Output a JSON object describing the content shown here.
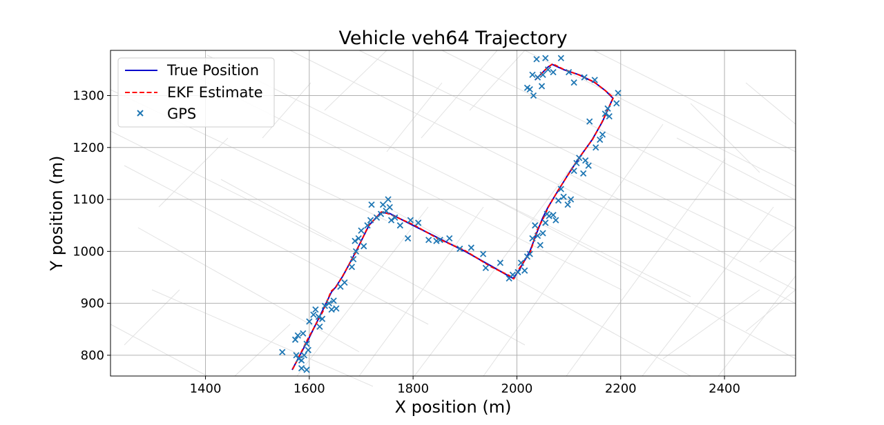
{
  "chart_data": {
    "type": "line",
    "title": "Vehicle veh64 Trajectory",
    "xlabel": "X position (m)",
    "ylabel": "Y position (m)",
    "xlim": [
      1217,
      2537
    ],
    "ylim": [
      760,
      1387
    ],
    "xticks": [
      1400,
      1600,
      1800,
      2000,
      2200,
      2400
    ],
    "yticks": [
      800,
      900,
      1000,
      1100,
      1200,
      1300
    ],
    "grid": true,
    "legend": "top-left",
    "series": [
      {
        "name": "True Position",
        "style": "solid",
        "color": "#0000cc",
        "x": [
          1567,
          1598,
          1625,
          1643,
          1650,
          1665,
          1690,
          1715,
          1738,
          1755,
          1800,
          1850,
          1900,
          1950,
          1985,
          1993,
          2005,
          2025,
          2040,
          2050,
          2060,
          2080,
          2100,
          2120,
          2145,
          2165,
          2185,
          2170,
          2150,
          2120,
          2090,
          2068,
          2060,
          2045,
          2035
        ],
        "y": [
          772,
          830,
          885,
          922,
          930,
          953,
          1000,
          1050,
          1075,
          1073,
          1050,
          1025,
          1000,
          972,
          952,
          948,
          965,
          1000,
          1040,
          1065,
          1085,
          1118,
          1150,
          1180,
          1215,
          1250,
          1295,
          1310,
          1325,
          1340,
          1350,
          1360,
          1355,
          1340,
          1330
        ]
      },
      {
        "name": "EKF Estimate",
        "style": "dashed",
        "color": "#ff0000",
        "x": [
          1568,
          1597,
          1626,
          1642,
          1651,
          1664,
          1691,
          1714,
          1739,
          1754,
          1801,
          1849,
          1901,
          1949,
          1986,
          1994,
          2004,
          2026,
          2039,
          2051,
          2061,
          2079,
          2101,
          2119,
          2146,
          2164,
          2186,
          2171,
          2149,
          2121,
          2089,
          2069,
          2059,
          2046,
          2034
        ],
        "y": [
          773,
          831,
          884,
          923,
          931,
          952,
          1001,
          1049,
          1076,
          1072,
          1051,
          1024,
          1001,
          971,
          953,
          947,
          966,
          999,
          1041,
          1064,
          1086,
          1117,
          1151,
          1179,
          1216,
          1249,
          1296,
          1309,
          1326,
          1339,
          1351,
          1361,
          1354,
          1341,
          1329
        ]
      },
      {
        "name": "GPS",
        "style": "marker",
        "marker": "x",
        "color": "#1f77b4",
        "points": [
          [
            1548,
            806
          ],
          [
            1575,
            800
          ],
          [
            1580,
            793
          ],
          [
            1585,
            790
          ],
          [
            1590,
            800
          ],
          [
            1573,
            830
          ],
          [
            1578,
            838
          ],
          [
            1588,
            842
          ],
          [
            1595,
            822
          ],
          [
            1598,
            810
          ],
          [
            1585,
            775
          ],
          [
            1595,
            772
          ],
          [
            1600,
            865
          ],
          [
            1608,
            878
          ],
          [
            1612,
            888
          ],
          [
            1618,
            874
          ],
          [
            1620,
            855
          ],
          [
            1625,
            870
          ],
          [
            1630,
            895
          ],
          [
            1638,
            900
          ],
          [
            1643,
            888
          ],
          [
            1647,
            905
          ],
          [
            1652,
            890
          ],
          [
            1660,
            932
          ],
          [
            1668,
            940
          ],
          [
            1682,
            970
          ],
          [
            1685,
            985
          ],
          [
            1690,
            1000
          ],
          [
            1688,
            1020
          ],
          [
            1695,
            1025
          ],
          [
            1700,
            1040
          ],
          [
            1705,
            1010
          ],
          [
            1712,
            1050
          ],
          [
            1718,
            1060
          ],
          [
            1720,
            1090
          ],
          [
            1730,
            1065
          ],
          [
            1738,
            1072
          ],
          [
            1742,
            1090
          ],
          [
            1748,
            1078
          ],
          [
            1752,
            1100
          ],
          [
            1755,
            1085
          ],
          [
            1758,
            1060
          ],
          [
            1765,
            1065
          ],
          [
            1775,
            1050
          ],
          [
            1790,
            1025
          ],
          [
            1795,
            1060
          ],
          [
            1810,
            1055
          ],
          [
            1830,
            1022
          ],
          [
            1845,
            1020
          ],
          [
            1852,
            1022
          ],
          [
            1870,
            1025
          ],
          [
            1890,
            1005
          ],
          [
            1912,
            1007
          ],
          [
            1935,
            995
          ],
          [
            1940,
            968
          ],
          [
            1968,
            978
          ],
          [
            1985,
            948
          ],
          [
            1992,
            955
          ],
          [
            2002,
            960
          ],
          [
            2008,
            978
          ],
          [
            2015,
            963
          ],
          [
            2020,
            990
          ],
          [
            2025,
            995
          ],
          [
            2030,
            1025
          ],
          [
            2035,
            1050
          ],
          [
            2040,
            1030
          ],
          [
            2045,
            1012
          ],
          [
            2050,
            1035
          ],
          [
            2055,
            1055
          ],
          [
            2058,
            1072
          ],
          [
            2062,
            1068
          ],
          [
            2070,
            1070
          ],
          [
            2075,
            1060
          ],
          [
            2080,
            1098
          ],
          [
            2085,
            1120
          ],
          [
            2090,
            1105
          ],
          [
            2098,
            1090
          ],
          [
            2104,
            1100
          ],
          [
            2110,
            1155
          ],
          [
            2115,
            1170
          ],
          [
            2120,
            1180
          ],
          [
            2128,
            1150
          ],
          [
            2132,
            1175
          ],
          [
            2138,
            1165
          ],
          [
            2140,
            1250
          ],
          [
            2152,
            1200
          ],
          [
            2160,
            1215
          ],
          [
            2165,
            1225
          ],
          [
            2170,
            1265
          ],
          [
            2175,
            1275
          ],
          [
            2178,
            1260
          ],
          [
            2192,
            1285
          ],
          [
            2195,
            1305
          ],
          [
            2150,
            1330
          ],
          [
            2130,
            1335
          ],
          [
            2110,
            1325
          ],
          [
            2100,
            1345
          ],
          [
            2085,
            1372
          ],
          [
            2070,
            1345
          ],
          [
            2060,
            1350
          ],
          [
            2055,
            1372
          ],
          [
            2050,
            1340
          ],
          [
            2048,
            1318
          ],
          [
            2040,
            1335
          ],
          [
            2038,
            1370
          ],
          [
            2030,
            1340
          ],
          [
            2025,
            1312
          ],
          [
            2020,
            1315
          ],
          [
            2032,
            1300
          ]
        ]
      }
    ]
  }
}
